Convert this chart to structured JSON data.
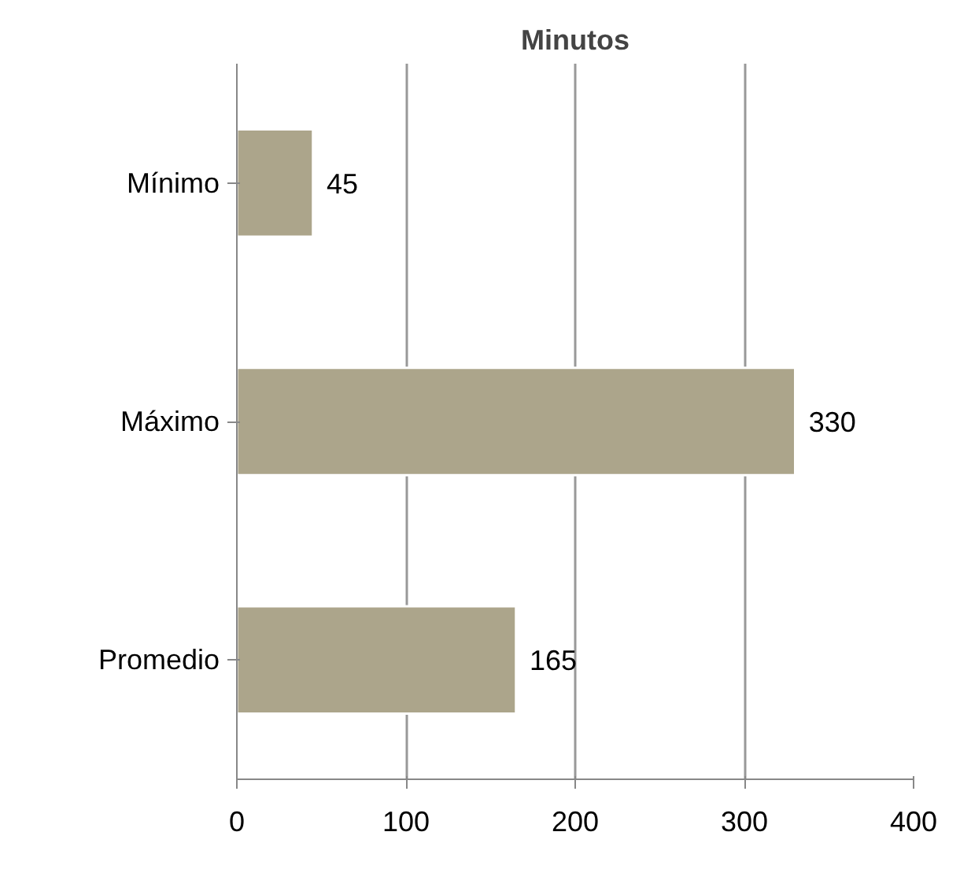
{
  "chart_data": {
    "type": "bar",
    "orientation": "horizontal",
    "title": "Minutos",
    "categories": [
      "Mínimo",
      "Máximo",
      "Promedio"
    ],
    "values": [
      45,
      330,
      165
    ],
    "color": "#aca58b",
    "xlim": [
      0,
      400
    ],
    "xticks": [
      0,
      100,
      200,
      300,
      400
    ],
    "grid": "x",
    "data_labels": true
  }
}
